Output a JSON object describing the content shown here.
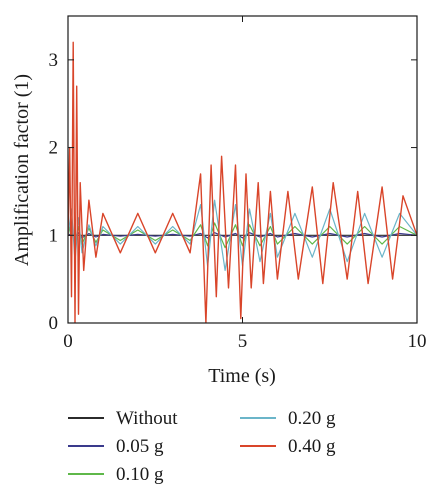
{
  "chart_data": {
    "type": "line",
    "title": "",
    "xlabel": "Time (s)",
    "ylabel": "Amplification factor (1)",
    "xlim": [
      0,
      10
    ],
    "ylim": [
      0,
      3.5
    ],
    "xticks": [
      0,
      5,
      10
    ],
    "xtick_labels": [
      "0",
      "5",
      "10"
    ],
    "yticks": [
      0,
      1,
      2,
      3
    ],
    "ytick_labels": [
      "0",
      "1",
      "2",
      "3"
    ],
    "grid": false,
    "legend_position": "bottom",
    "series": [
      {
        "name": "Without",
        "color": "#2b2b2b",
        "x": [
          0,
          0.5,
          1,
          1.5,
          2,
          2.5,
          3,
          3.5,
          4,
          4.5,
          5,
          5.5,
          6,
          6.5,
          7,
          7.5,
          8,
          8.5,
          9,
          9.5,
          10
        ],
        "y": [
          1,
          1,
          1,
          1,
          1,
          1,
          1,
          1,
          1,
          1,
          1,
          1,
          1,
          1,
          1,
          1,
          1,
          1,
          1,
          1,
          1
        ]
      },
      {
        "name": "0.05 g",
        "color": "#3a3a8c",
        "x": [
          0,
          0.1,
          0.2,
          0.3,
          0.4,
          0.6,
          0.8,
          1.0,
          1.5,
          2.0,
          2.5,
          3.0,
          3.5,
          3.8,
          4.0,
          4.2,
          4.5,
          4.8,
          5.0,
          5.2,
          5.5,
          5.8,
          6.0,
          6.5,
          7.0,
          7.5,
          8.0,
          8.5,
          9.0,
          9.5,
          10.0
        ],
        "y": [
          1.0,
          1.02,
          0.98,
          1.03,
          0.97,
          1.02,
          0.98,
          1.01,
          0.99,
          1.01,
          0.99,
          1.01,
          0.99,
          1.02,
          0.97,
          1.03,
          0.98,
          1.02,
          0.97,
          1.03,
          0.98,
          1.02,
          0.98,
          1.02,
          0.98,
          1.02,
          0.98,
          1.02,
          0.98,
          1.02,
          1.0
        ]
      },
      {
        "name": "0.10 g",
        "color": "#5fb84a",
        "x": [
          0,
          0.1,
          0.2,
          0.3,
          0.4,
          0.6,
          0.8,
          1.0,
          1.5,
          2.0,
          2.5,
          3.0,
          3.5,
          3.8,
          4.0,
          4.2,
          4.5,
          4.8,
          5.0,
          5.2,
          5.5,
          5.8,
          6.0,
          6.5,
          7.0,
          7.5,
          8.0,
          8.5,
          9.0,
          9.5,
          10.0
        ],
        "y": [
          1.0,
          1.15,
          0.85,
          1.1,
          0.9,
          1.08,
          0.92,
          1.06,
          0.94,
          1.06,
          0.94,
          1.06,
          0.94,
          1.12,
          0.88,
          1.14,
          0.86,
          1.12,
          0.88,
          1.12,
          0.88,
          1.1,
          0.9,
          1.1,
          0.9,
          1.1,
          0.9,
          1.1,
          0.9,
          1.1,
          1.0
        ]
      },
      {
        "name": "0.20 g",
        "color": "#6bb5c9",
        "x": [
          0,
          0.1,
          0.2,
          0.3,
          0.4,
          0.6,
          0.8,
          1.0,
          1.5,
          2.0,
          2.5,
          3.0,
          3.5,
          3.8,
          4.0,
          4.2,
          4.5,
          4.8,
          5.0,
          5.2,
          5.5,
          5.8,
          6.0,
          6.5,
          7.0,
          7.5,
          8.0,
          8.5,
          9.0,
          9.5,
          10.0
        ],
        "y": [
          1.0,
          1.3,
          0.7,
          1.2,
          0.8,
          1.12,
          0.88,
          1.1,
          0.9,
          1.1,
          0.9,
          1.1,
          0.9,
          1.35,
          0.65,
          1.4,
          0.6,
          1.35,
          0.65,
          1.3,
          0.7,
          1.25,
          0.75,
          1.25,
          0.75,
          1.3,
          0.7,
          1.25,
          0.75,
          1.25,
          1.0
        ]
      },
      {
        "name": "0.40 g",
        "color": "#d9452a",
        "x": [
          0,
          0.05,
          0.1,
          0.15,
          0.2,
          0.25,
          0.3,
          0.35,
          0.45,
          0.6,
          0.8,
          1.0,
          1.5,
          2.0,
          2.5,
          3.0,
          3.5,
          3.8,
          3.95,
          4.1,
          4.25,
          4.4,
          4.6,
          4.8,
          4.95,
          5.1,
          5.25,
          5.45,
          5.6,
          5.8,
          6.0,
          6.3,
          6.6,
          7.0,
          7.3,
          7.6,
          8.0,
          8.3,
          8.6,
          9.0,
          9.3,
          9.6,
          10.0
        ],
        "y": [
          1.0,
          2.0,
          0.3,
          3.2,
          0.0,
          2.7,
          0.1,
          1.6,
          0.6,
          1.4,
          0.75,
          1.25,
          0.8,
          1.25,
          0.8,
          1.25,
          0.8,
          1.7,
          0.0,
          1.8,
          0.3,
          1.9,
          0.4,
          1.8,
          0.05,
          1.7,
          0.4,
          1.6,
          0.45,
          1.5,
          0.5,
          1.5,
          0.5,
          1.55,
          0.45,
          1.6,
          0.5,
          1.5,
          0.45,
          1.55,
          0.5,
          1.45,
          1.0
        ]
      }
    ]
  }
}
